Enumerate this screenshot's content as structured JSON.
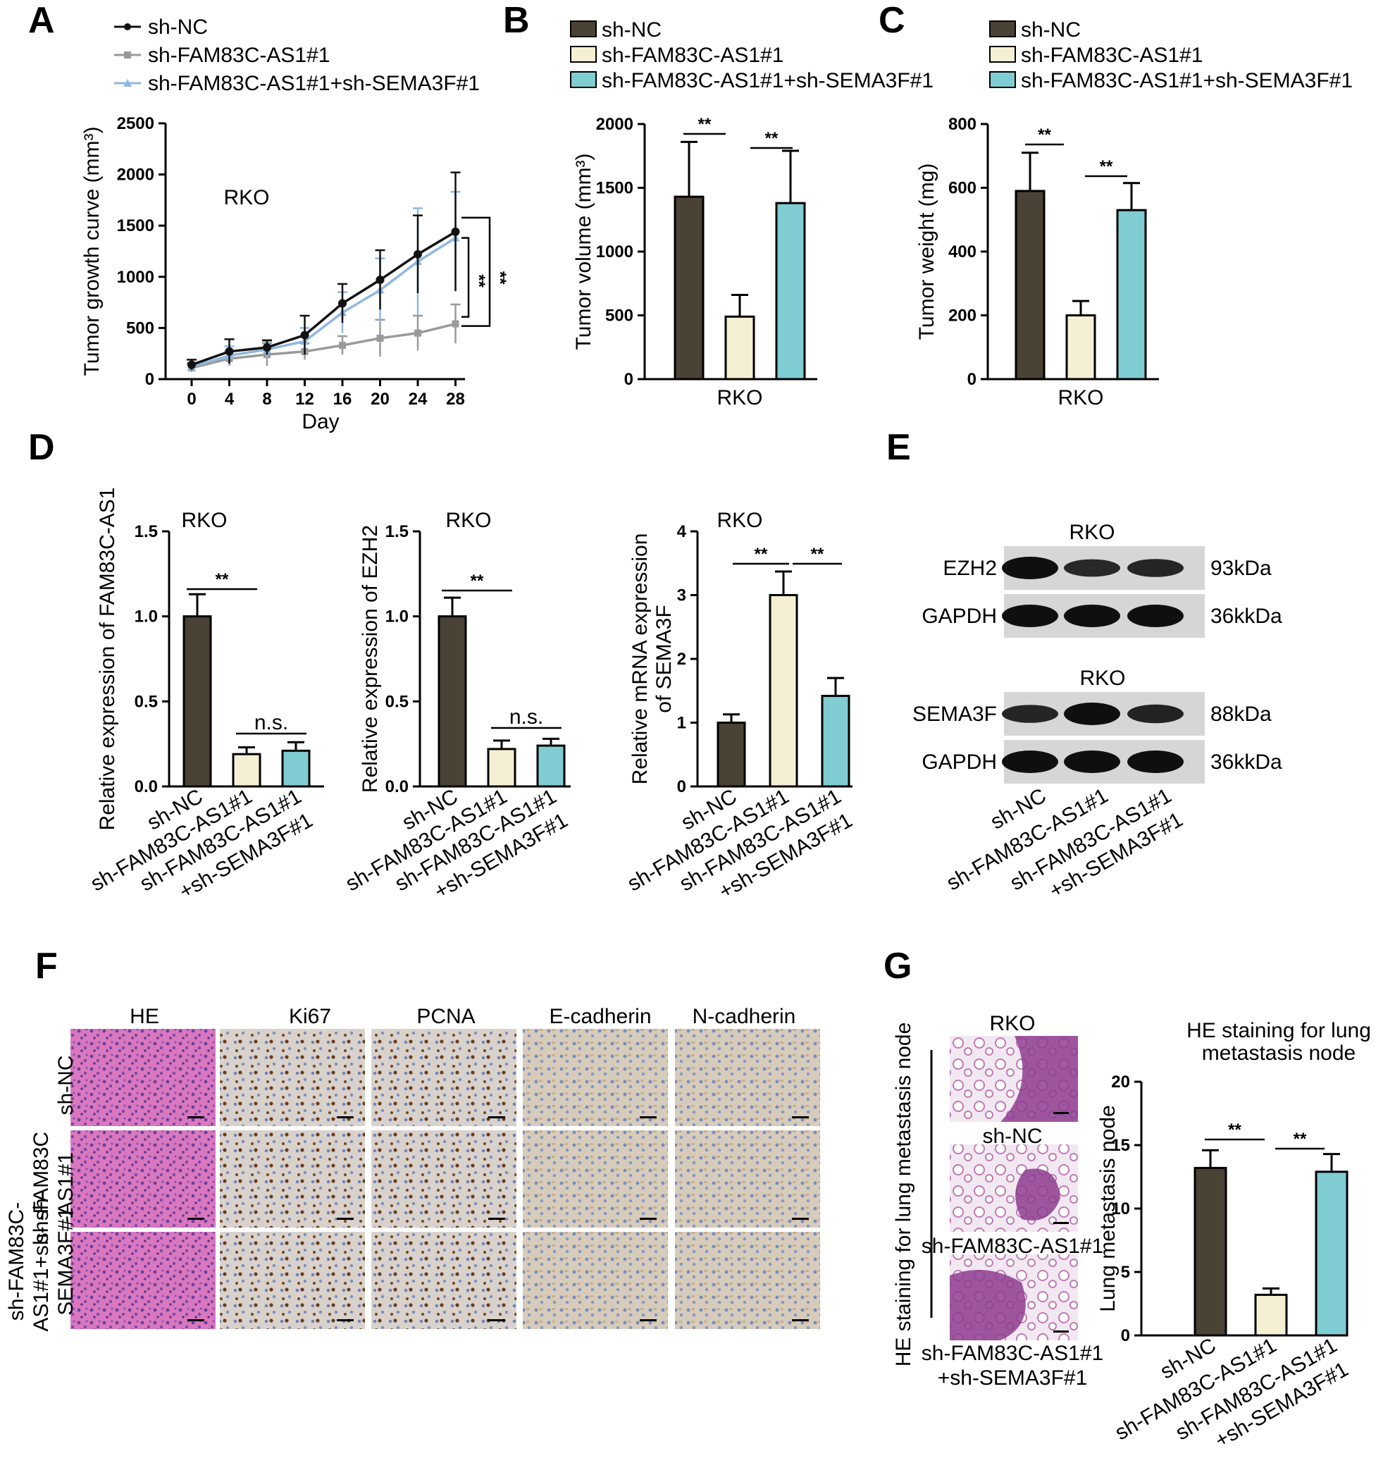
{
  "panels": {
    "A": "A",
    "B": "B",
    "C": "C",
    "D": "D",
    "E": "E",
    "F": "F",
    "G": "G"
  },
  "colors": {
    "shNC": "#4a4235",
    "shFAM": "#f5f0d3",
    "shSEMA": "#7fccd2",
    "line_shNC": "#111111",
    "line_shFAM": "#9a9a9a",
    "line_shSEMA": "#8fb7e0"
  },
  "groups": [
    "sh-NC",
    "sh-FAM83C-AS1#1",
    "sh-FAM83C-AS1#1+sh-SEMA3F#1"
  ],
  "tick_groups": [
    [
      "sh-NC"
    ],
    [
      "sh-FAM83C-AS1#1"
    ],
    [
      "sh-FAM83C-AS1#1",
      "+sh-SEMA3F#1"
    ]
  ],
  "cell_line": "RKO",
  "sig": {
    "double": "**",
    "ns": "n.s."
  },
  "chart_data": [
    {
      "id": "A",
      "type": "line",
      "annotation": "RKO",
      "xlabel": "Day",
      "ylabel": "Tumor growth curve (mm³)",
      "x": [
        0,
        4,
        8,
        12,
        16,
        20,
        24,
        28
      ],
      "ylim": [
        0,
        2500
      ],
      "yticks": [
        0,
        500,
        1000,
        1500,
        2000,
        2500
      ],
      "series": [
        {
          "name": "sh-NC",
          "values": [
            140,
            270,
            310,
            430,
            740,
            970,
            1220,
            1440
          ],
          "errors": [
            50,
            120,
            70,
            190,
            190,
            290,
            380,
            580
          ]
        },
        {
          "name": "sh-FAM83C-AS1#1",
          "values": [
            110,
            200,
            240,
            270,
            330,
            400,
            450,
            540
          ],
          "errors": [
            40,
            70,
            110,
            80,
            90,
            180,
            170,
            190
          ]
        },
        {
          "name": "sh-FAM83C-AS1#1+sh-SEMA3F#1",
          "values": [
            120,
            230,
            290,
            370,
            650,
            870,
            1150,
            1380
          ],
          "errors": [
            40,
            90,
            80,
            130,
            200,
            310,
            520,
            450
          ]
        }
      ]
    },
    {
      "id": "B",
      "type": "bar",
      "annotation": "RKO",
      "xlabel": "RKO",
      "ylabel": "Tumor volume (mm³)",
      "categories": [
        "sh-NC",
        "sh-FAM83C-AS1#1",
        "sh-FAM83C-AS1#1+sh-SEMA3F#1"
      ],
      "values": [
        1430,
        490,
        1380
      ],
      "errors": [
        430,
        170,
        410
      ],
      "ylim": [
        0,
        2000
      ],
      "yticks": [
        0,
        500,
        1000,
        1500,
        2000
      ]
    },
    {
      "id": "C",
      "type": "bar",
      "annotation": "RKO",
      "xlabel": "RKO",
      "ylabel": "Tumor weight (mg)",
      "categories": [
        "sh-NC",
        "sh-FAM83C-AS1#1",
        "sh-FAM83C-AS1#1+sh-SEMA3F#1"
      ],
      "values": [
        590,
        200,
        530
      ],
      "errors": [
        120,
        45,
        85
      ],
      "ylim": [
        0,
        800
      ],
      "yticks": [
        0,
        200,
        400,
        600,
        800
      ]
    },
    {
      "id": "D1",
      "type": "bar",
      "annotation": "RKO",
      "ylabel": "Relative expression of FAM83C-AS1",
      "categories": [
        "sh-NC",
        "sh-FAM83C-AS1#1",
        "sh-FAM83C-AS1#1+sh-SEMA3F#1"
      ],
      "values": [
        1.0,
        0.19,
        0.21
      ],
      "errors": [
        0.13,
        0.04,
        0.05
      ],
      "ylim": [
        0,
        1.5
      ],
      "yticks": [
        "0.0",
        "0.5",
        "1.0",
        "1.5"
      ]
    },
    {
      "id": "D2",
      "type": "bar",
      "annotation": "RKO",
      "ylabel": "Relative expression of EZH2",
      "categories": [
        "sh-NC",
        "sh-FAM83C-AS1#1",
        "sh-FAM83C-AS1#1+sh-SEMA3F#1"
      ],
      "values": [
        1.0,
        0.22,
        0.24
      ],
      "errors": [
        0.11,
        0.05,
        0.04
      ],
      "ylim": [
        0,
        1.5
      ],
      "yticks": [
        "0.0",
        "0.5",
        "1.0",
        "1.5"
      ]
    },
    {
      "id": "D3",
      "type": "bar",
      "annotation": "RKO",
      "ylabel": "Relative mRNA expression of SEMA3F",
      "categories": [
        "sh-NC",
        "sh-FAM83C-AS1#1",
        "sh-FAM83C-AS1#1+sh-SEMA3F#1"
      ],
      "values": [
        1.0,
        3.0,
        1.42
      ],
      "errors": [
        0.13,
        0.37,
        0.28
      ],
      "ylim": [
        0,
        4
      ],
      "yticks": [
        "0",
        "1",
        "2",
        "3",
        "4"
      ]
    },
    {
      "id": "G",
      "type": "bar",
      "title": "HE staining for lung metastasis node",
      "ylabel": "Lung metastasis node",
      "categories": [
        "sh-NC",
        "sh-FAM83C-AS1#1",
        "sh-FAM83C-AS1#1+sh-SEMA3F#1"
      ],
      "values": [
        13.2,
        3.2,
        12.9
      ],
      "errors": [
        1.4,
        0.5,
        1.4
      ],
      "ylim": [
        0,
        20
      ],
      "yticks": [
        0,
        5,
        10,
        15,
        20
      ]
    }
  ],
  "western": {
    "blocks": [
      {
        "title": "RKO",
        "rows": [
          {
            "protein": "EZH2",
            "size": "93kDa",
            "intensity": [
              1.0,
              0.55,
              0.6
            ]
          },
          {
            "protein": "GAPDH",
            "size": "36kkDa",
            "intensity": [
              1.0,
              1.0,
              1.0
            ]
          }
        ]
      },
      {
        "title": "RKO",
        "rows": [
          {
            "protein": "SEMA3F",
            "size": "88kDa",
            "intensity": [
              0.6,
              1.0,
              0.65
            ]
          },
          {
            "protein": "GAPDH",
            "size": "36kkDa",
            "intensity": [
              1.0,
              1.0,
              1.0
            ]
          }
        ]
      }
    ]
  },
  "panelF": {
    "columns": [
      "HE",
      "Ki67",
      "PCNA",
      "E-cadherin",
      "N-cadherin"
    ],
    "rows": [
      [
        "sh-NC"
      ],
      [
        "sh-FAM83C",
        "-AS1#1"
      ],
      [
        "sh-FAM83C-",
        "AS1#1+sh- sh-",
        "SEMA3F#1"
      ]
    ]
  },
  "panelG": {
    "images_title": "RKO",
    "side_label": "HE staining for lung metastasis node",
    "captions": [
      [
        "sh-NC"
      ],
      [
        "sh-FAM83C-AS1#1"
      ],
      [
        "sh-FAM83C-AS1#1",
        "+sh-SEMA3F#1"
      ]
    ]
  }
}
